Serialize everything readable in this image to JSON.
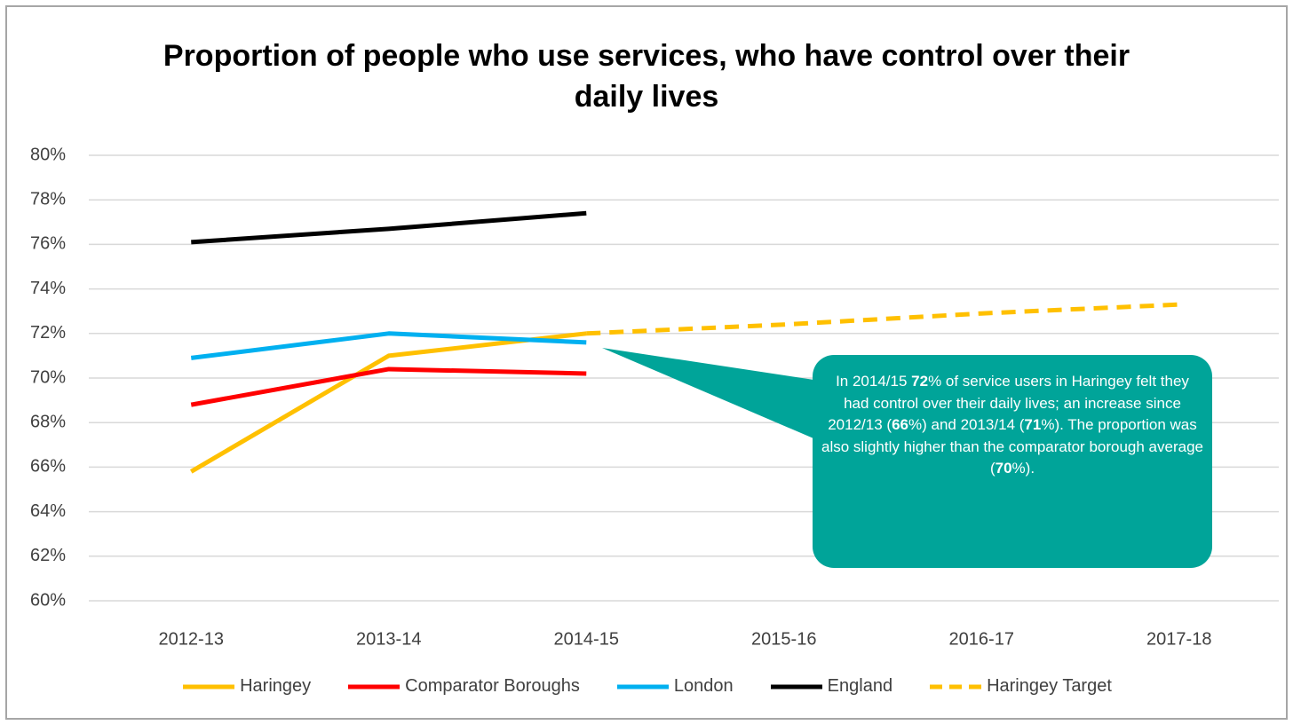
{
  "chart_data": {
    "type": "line",
    "title": "Proportion of people who use services, who have control over their daily lives",
    "categories": [
      "2012-13",
      "2013-14",
      "2014-15",
      "2015-16",
      "2016-17",
      "2017-18"
    ],
    "series": [
      {
        "name": "Haringey",
        "color": "#ffc000",
        "dashed": false,
        "values": [
          65.8,
          71,
          72,
          null,
          null,
          null
        ]
      },
      {
        "name": "Comparator Boroughs",
        "color": "#ff0000",
        "dashed": false,
        "values": [
          68.8,
          70.4,
          70.2,
          null,
          null,
          null
        ]
      },
      {
        "name": "London",
        "color": "#00b0f0",
        "dashed": false,
        "values": [
          70.9,
          72,
          71.6,
          null,
          null,
          null
        ]
      },
      {
        "name": "England",
        "color": "#000000",
        "dashed": false,
        "values": [
          76.1,
          76.7,
          77.4,
          null,
          null,
          null
        ]
      },
      {
        "name": "Haringey Target",
        "color": "#ffc000",
        "dashed": true,
        "values": [
          null,
          null,
          72,
          72.4,
          72.9,
          73.3
        ]
      }
    ],
    "ylim": [
      60,
      80
    ],
    "yticks": [
      {
        "value": 60,
        "label": "60%"
      },
      {
        "value": 62,
        "label": "62%"
      },
      {
        "value": 64,
        "label": "64%"
      },
      {
        "value": 66,
        "label": "66%"
      },
      {
        "value": 68,
        "label": "68%"
      },
      {
        "value": 70,
        "label": "70%"
      },
      {
        "value": 72,
        "label": "72%"
      },
      {
        "value": 74,
        "label": "74%"
      },
      {
        "value": 76,
        "label": "76%"
      },
      {
        "value": 78,
        "label": "78%"
      },
      {
        "value": 80,
        "label": "80%"
      }
    ],
    "grid": true,
    "legend": "bottom",
    "annotation": {
      "color": "#00a499",
      "parts": [
        {
          "text": "In 2014/15 ",
          "bold": false
        },
        {
          "text": "72",
          "bold": true
        },
        {
          "text": "% of service users in Haringey felt they had control over their daily lives; an increase since 2012/13 (",
          "bold": false
        },
        {
          "text": "66",
          "bold": true
        },
        {
          "text": "%) and 2013/14 (",
          "bold": false
        },
        {
          "text": "71",
          "bold": true
        },
        {
          "text": "%). The proportion was also slightly higher than the comparator borough average (",
          "bold": false
        },
        {
          "text": "70",
          "bold": true
        },
        {
          "text": "%).",
          "bold": false
        }
      ]
    }
  }
}
